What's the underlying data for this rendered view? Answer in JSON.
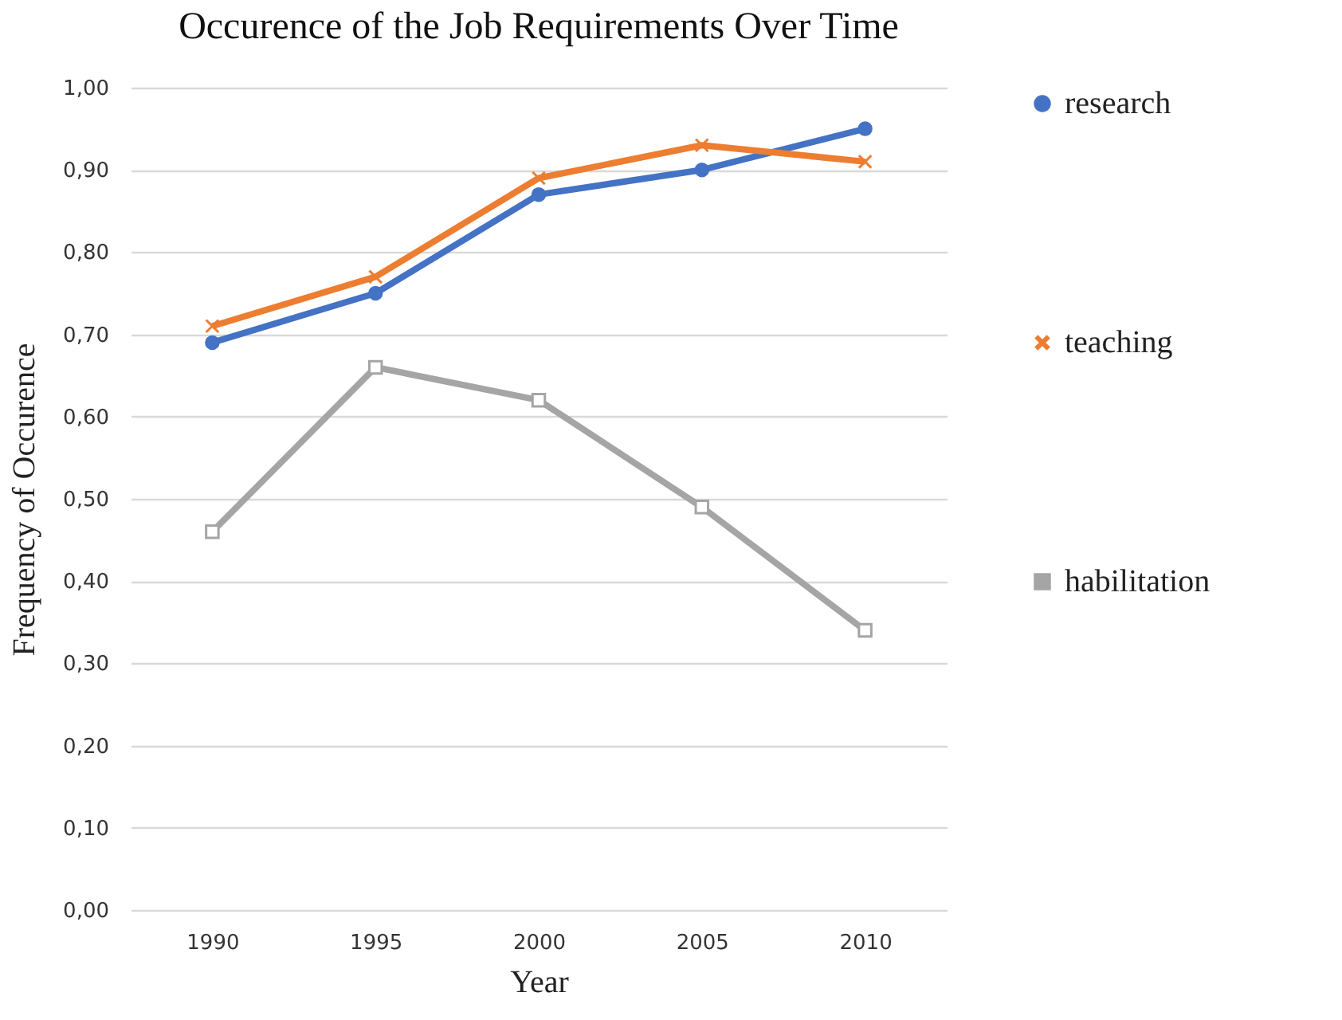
{
  "chart_data": {
    "type": "line",
    "title": "Occurence of the Job Requirements Over Time",
    "xlabel": "Year",
    "ylabel": "Frequency of Occurence",
    "categories": [
      "1990",
      "1995",
      "2000",
      "2005",
      "2010"
    ],
    "series": [
      {
        "name": "research",
        "color": "#4472c4",
        "marker": "circle",
        "values": [
          0.69,
          0.75,
          0.87,
          0.9,
          0.95
        ]
      },
      {
        "name": "teaching",
        "color": "#ed7d31",
        "marker": "cross",
        "values": [
          0.71,
          0.77,
          0.89,
          0.93,
          0.91
        ]
      },
      {
        "name": "habilitation",
        "color": "#a5a5a5",
        "marker": "square",
        "values": [
          0.46,
          0.66,
          0.62,
          0.49,
          0.34
        ]
      }
    ],
    "ylim": [
      0,
      1
    ],
    "yticks": [
      {
        "value": 0,
        "label": "0,00"
      },
      {
        "value": 0.1,
        "label": "0,10"
      },
      {
        "value": 0.2,
        "label": "0,20"
      },
      {
        "value": 0.3,
        "label": "0,30"
      },
      {
        "value": 0.4,
        "label": "0,40"
      },
      {
        "value": 0.5,
        "label": "0,50"
      },
      {
        "value": 0.6,
        "label": "0,60"
      },
      {
        "value": 0.7,
        "label": "0,70"
      },
      {
        "value": 0.8,
        "label": "0,80"
      },
      {
        "value": 0.9,
        "label": "0,90"
      },
      {
        "value": 1,
        "label": "1,00"
      }
    ],
    "grid": "y",
    "legend": "right"
  }
}
